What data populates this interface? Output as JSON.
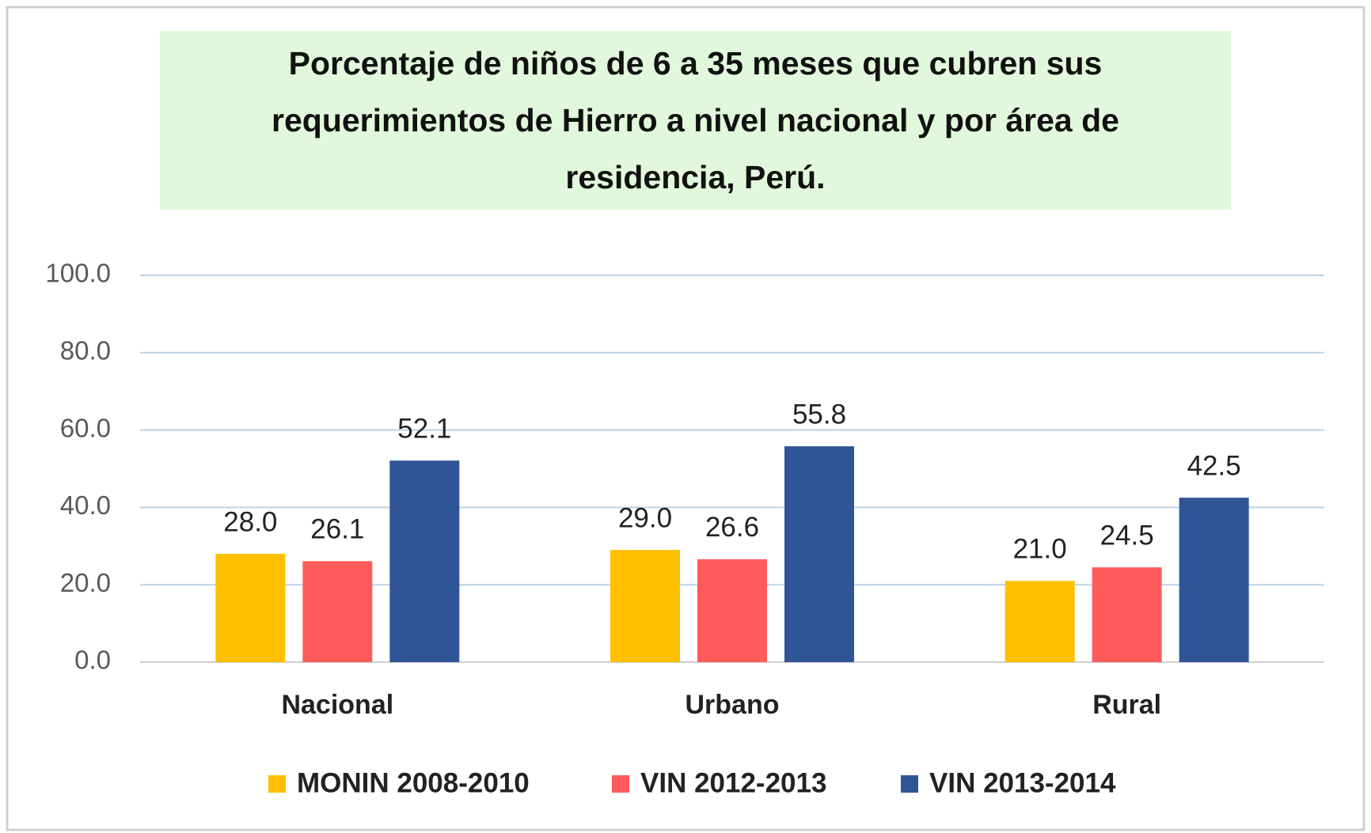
{
  "chart_data": {
    "type": "bar",
    "title": "Porcentaje de niños de 6 a 35 meses que cubren sus requerimientos de Hierro a nivel nacional y por área de residencia, Perú.",
    "categories": [
      "Nacional",
      "Urbano",
      "Rural"
    ],
    "series": [
      {
        "name": "MONIN 2008-2010",
        "color": "#ffc000",
        "values": [
          28.0,
          29.0,
          21.0
        ],
        "value_labels": [
          "28.0",
          "29.0",
          "21.0"
        ]
      },
      {
        "name": "VIN 2012-2013",
        "color": "#ff5b5b",
        "values": [
          26.1,
          26.6,
          24.5
        ],
        "value_labels": [
          "26.1",
          "26.6",
          "24.5"
        ]
      },
      {
        "name": "VIN 2013-2014",
        "color": "#2f5597",
        "values": [
          52.1,
          55.8,
          42.5
        ],
        "value_labels": [
          "52.1",
          "55.8",
          "42.5"
        ]
      }
    ],
    "ylim": [
      0,
      100
    ],
    "yticks": [
      {
        "value": 0,
        "label": "0.0"
      },
      {
        "value": 20,
        "label": "20.0"
      },
      {
        "value": 40,
        "label": "40.0"
      },
      {
        "value": 60,
        "label": "60.0"
      },
      {
        "value": 80,
        "label": "80.0"
      },
      {
        "value": 100,
        "label": "100.0"
      }
    ],
    "grid": true,
    "legend": "bottom"
  }
}
